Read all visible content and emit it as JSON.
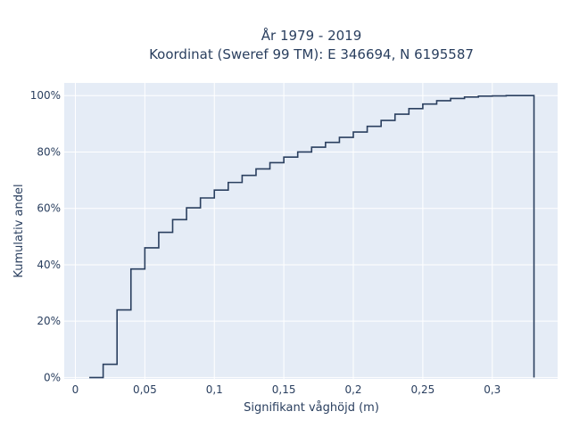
{
  "chart_data": {
    "type": "line",
    "subtype": "cumulative-step",
    "title_line1": "År 1979 - 2019",
    "title_line2": "Koordinat (Sweref 99 TM): E 346694, N 6195587",
    "xlabel": "Signifikant våghöjd (m)",
    "ylabel": "Kumulativ andel",
    "xlim": [
      -0.008,
      0.347
    ],
    "ylim": [
      -0.005,
      1.045
    ],
    "x_ticks": [
      0,
      0.05,
      0.1,
      0.15,
      0.2,
      0.25,
      0.3
    ],
    "x_tick_labels": [
      "0",
      "0,05",
      "0,1",
      "0,15",
      "0,2",
      "0,25",
      "0,3"
    ],
    "y_ticks": [
      0,
      0.2,
      0.4,
      0.6,
      0.8,
      1.0
    ],
    "y_tick_labels": [
      "0%",
      "20%",
      "40%",
      "60%",
      "80%",
      "100%"
    ],
    "grid": true,
    "colors": {
      "background": "#e5ecf6",
      "grid": "#ffffff",
      "line": "#2a3f5f",
      "text": "#2a3f5f"
    },
    "bin_edges": [
      0.01,
      0.02,
      0.03,
      0.04,
      0.05,
      0.06,
      0.07,
      0.08,
      0.09,
      0.1,
      0.11,
      0.12,
      0.13,
      0.14,
      0.15,
      0.16,
      0.17,
      0.18,
      0.19,
      0.2,
      0.21,
      0.22,
      0.23,
      0.24,
      0.25,
      0.26,
      0.27,
      0.28,
      0.29,
      0.3,
      0.31,
      0.32,
      0.33
    ],
    "cumulative": [
      0.0,
      0.047,
      0.24,
      0.385,
      0.46,
      0.515,
      0.56,
      0.602,
      0.637,
      0.665,
      0.692,
      0.717,
      0.74,
      0.762,
      0.782,
      0.8,
      0.817,
      0.834,
      0.852,
      0.871,
      0.891,
      0.912,
      0.934,
      0.954,
      0.97,
      0.982,
      0.99,
      0.995,
      0.998,
      0.999,
      1.0,
      1.0
    ],
    "drop_to": 0
  }
}
